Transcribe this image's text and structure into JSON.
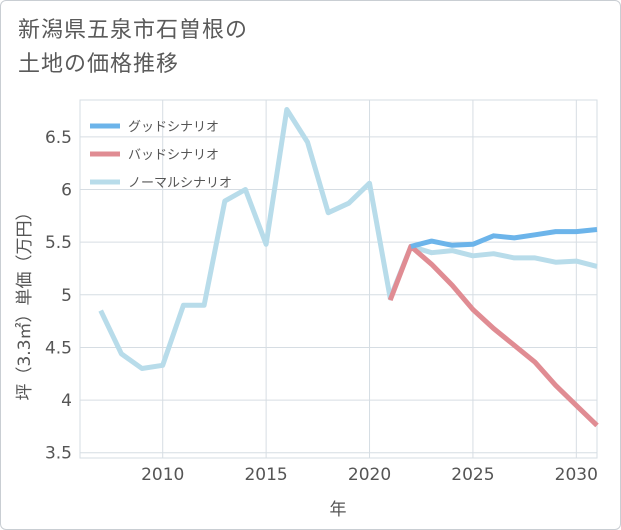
{
  "title_lines": [
    "新潟県五泉市石曽根の",
    "土地の価格推移"
  ],
  "chart_data": {
    "type": "line",
    "title": "新潟県五泉市石曽根の土地の価格推移",
    "xlabel": "年",
    "ylabel": "坪（3.3㎡）単価（万円）",
    "xlim": [
      2006,
      2031
    ],
    "ylim": [
      3.45,
      6.85
    ],
    "x_ticks": [
      2010,
      2015,
      2020,
      2025,
      2030
    ],
    "y_ticks": [
      3.5,
      4,
      4.5,
      5,
      5.5,
      6,
      6.5
    ],
    "y_tick_labels": [
      "3.5",
      "4",
      "4.5",
      "5",
      "5.5",
      "6",
      "6.5"
    ],
    "grid": true,
    "legend_position": "top-left",
    "series": [
      {
        "name": "グッドシナリオ",
        "color": "#6cb4ea",
        "x": [
          2022,
          2023,
          2024,
          2025,
          2026,
          2027,
          2028,
          2029,
          2030,
          2031
        ],
        "y": [
          5.46,
          5.51,
          5.47,
          5.48,
          5.56,
          5.54,
          5.57,
          5.6,
          5.6,
          5.62
        ]
      },
      {
        "name": "バッドシナリオ",
        "color": "#e08c93",
        "x": [
          2021,
          2022,
          2023,
          2024,
          2025,
          2026,
          2027,
          2028,
          2029,
          2030,
          2031
        ],
        "y": [
          4.95,
          5.46,
          5.29,
          5.09,
          4.86,
          4.68,
          4.52,
          4.36,
          4.14,
          3.95,
          3.76
        ]
      },
      {
        "name": "ノーマルシナリオ",
        "color": "#b8dcea",
        "x": [
          2007,
          2008,
          2009,
          2010,
          2011,
          2012,
          2013,
          2014,
          2015,
          2016,
          2017,
          2018,
          2019,
          2020,
          2021,
          2022,
          2023,
          2024,
          2025,
          2026,
          2027,
          2028,
          2029,
          2030,
          2031
        ],
        "y": [
          4.85,
          4.44,
          4.3,
          4.33,
          4.9,
          4.9,
          5.89,
          6.0,
          5.48,
          6.76,
          6.45,
          5.78,
          5.87,
          6.06,
          4.97,
          5.46,
          5.4,
          5.42,
          5.37,
          5.39,
          5.35,
          5.35,
          5.31,
          5.32,
          5.27
        ]
      }
    ]
  }
}
